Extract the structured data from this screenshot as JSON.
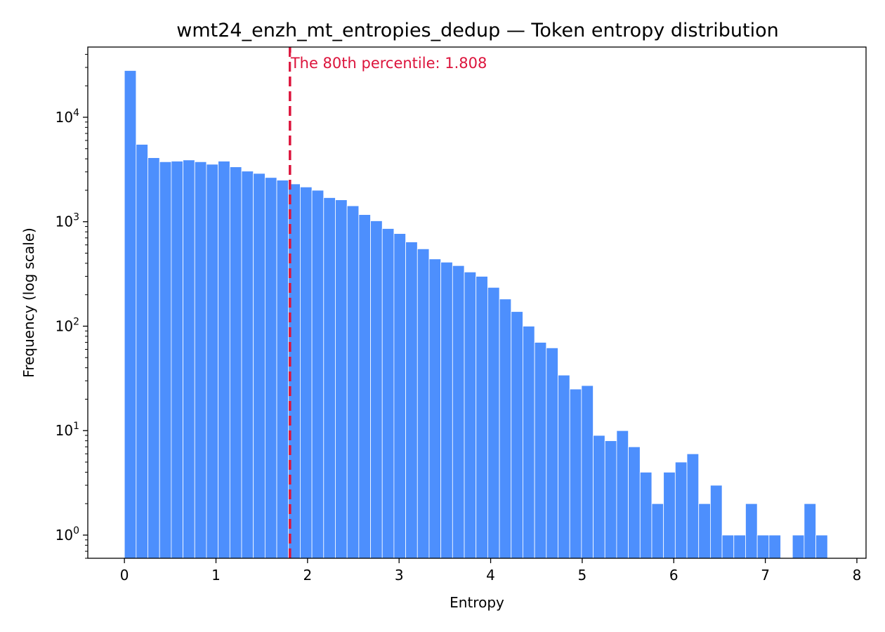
{
  "chart_data": {
    "type": "bar",
    "title": "wmt24_enzh_mt_entropies_dedup — Token entropy distribution",
    "xlabel": "Entropy",
    "ylabel": "Frequency (log scale)",
    "yscale": "log",
    "xlim": [
      -0.4,
      8.1
    ],
    "ylim": [
      0.6,
      47000
    ],
    "xticks": [
      0,
      1,
      2,
      3,
      4,
      5,
      6,
      7,
      8
    ],
    "xtick_labels": [
      "0",
      "1",
      "2",
      "3",
      "4",
      "5",
      "6",
      "7",
      "8"
    ],
    "yticks": [
      1,
      10,
      100,
      1000,
      10000
    ],
    "ytick_labels": [
      {
        "base": "10",
        "exp": "0"
      },
      {
        "base": "10",
        "exp": "1"
      },
      {
        "base": "10",
        "exp": "2"
      },
      {
        "base": "10",
        "exp": "3"
      },
      {
        "base": "10",
        "exp": "4"
      }
    ],
    "bin_start": 0.0,
    "bin_width": 0.128,
    "values": [
      28000,
      5500,
      4100,
      3750,
      3800,
      3900,
      3750,
      3550,
      3800,
      3350,
      3050,
      2900,
      2650,
      2500,
      2300,
      2150,
      2000,
      1700,
      1620,
      1420,
      1170,
      1020,
      860,
      770,
      640,
      550,
      440,
      410,
      380,
      330,
      300,
      235,
      182,
      138,
      100,
      70,
      62,
      34,
      25,
      27,
      9,
      8,
      10,
      7,
      4,
      2,
      4,
      5,
      6,
      2,
      3,
      1,
      1,
      2,
      1,
      1,
      0,
      1,
      2,
      1
    ],
    "bar_color": "#4d8ffd",
    "percentile_line": {
      "x": 1.808,
      "label": "The 80th percentile: 1.808",
      "color": "#dc143c"
    },
    "grid": false,
    "legend": "none"
  }
}
